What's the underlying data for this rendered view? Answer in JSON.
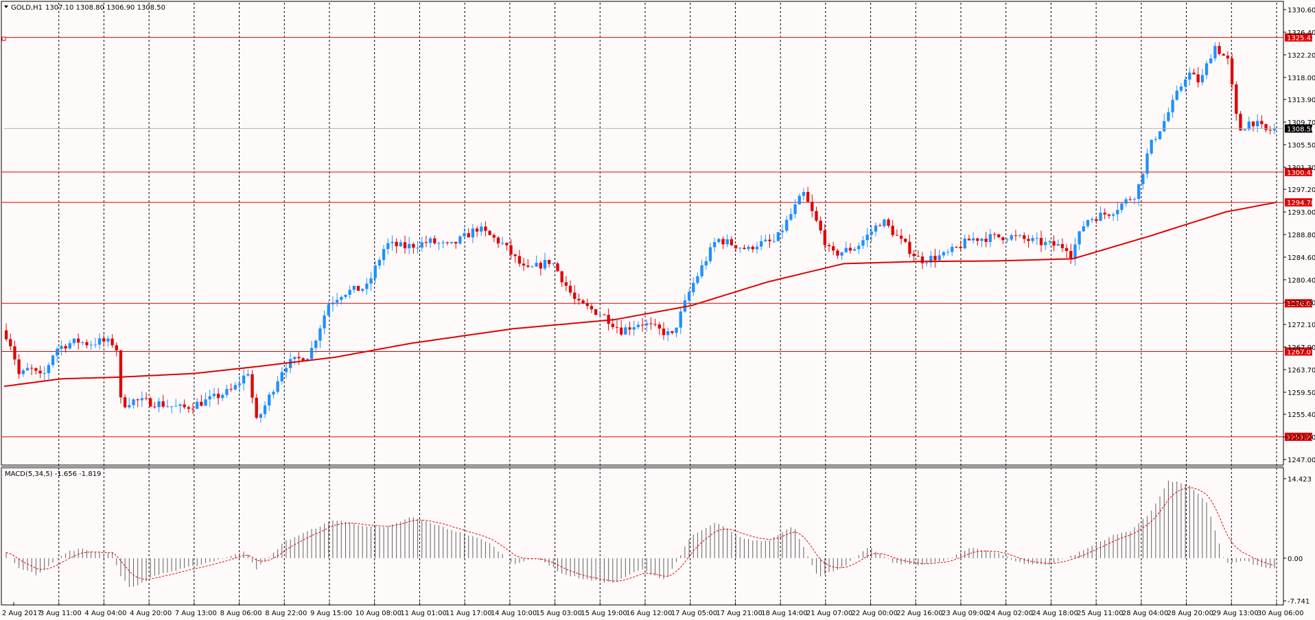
{
  "chart_data": {
    "type": "candlestick",
    "symbol_header": "GOLD,H1",
    "ohlc_header": "1307.10 1308.80 1306.90 1308.50",
    "current_price": "1308.50",
    "price_ticks": [
      "1330.60",
      "1326.40",
      "1322.20",
      "1318.00",
      "1313.90",
      "1309.70",
      "1305.50",
      "1301.30",
      "1297.20",
      "1293.00",
      "1288.80",
      "1284.60",
      "1280.40",
      "1276.20",
      "1272.10",
      "1267.90",
      "1263.70",
      "1259.50",
      "1255.40",
      "1251.20",
      "1247.00"
    ],
    "price_range": [
      1247.0,
      1330.6
    ],
    "moving_average": {
      "color": "#e00000",
      "x": [
        0,
        0.045,
        0.09,
        0.15,
        0.2,
        0.26,
        0.32,
        0.4,
        0.48,
        0.54,
        0.6,
        0.66,
        0.72,
        0.78,
        0.84,
        0.9,
        0.96,
        1.0
      ],
      "values": [
        1260.6,
        1262.0,
        1262.3,
        1263.0,
        1264.3,
        1266.0,
        1268.6,
        1271.3,
        1273.0,
        1275.6,
        1280.0,
        1283.4,
        1283.8,
        1283.9,
        1284.3,
        1288.5,
        1293.0,
        1294.8
      ]
    },
    "horizontal_levels": [
      {
        "label": "1325.43",
        "value": 1325.43
      },
      {
        "label": "1300.42",
        "value": 1300.42
      },
      {
        "label": "1294.78",
        "value": 1294.78
      },
      {
        "label": "1276.03",
        "value": 1276.03
      },
      {
        "label": "1267.07",
        "value": 1267.07
      },
      {
        "label": "1251.22",
        "value": 1251.22
      }
    ],
    "price_anchors": {
      "x": [
        0.0,
        0.006,
        0.012,
        0.02,
        0.03,
        0.04,
        0.05,
        0.058,
        0.066,
        0.076,
        0.088,
        0.092,
        0.1,
        0.12,
        0.14,
        0.16,
        0.18,
        0.194,
        0.196,
        0.205,
        0.22,
        0.24,
        0.255,
        0.266,
        0.285,
        0.3,
        0.315,
        0.335,
        0.35,
        0.372,
        0.392,
        0.41,
        0.43,
        0.45,
        0.47,
        0.485,
        0.5,
        0.525,
        0.54,
        0.56,
        0.585,
        0.59,
        0.606,
        0.628,
        0.65,
        0.67,
        0.69,
        0.705,
        0.72,
        0.74,
        0.76,
        0.79,
        0.82,
        0.835,
        0.831,
        0.85,
        0.87,
        0.89,
        0.9,
        0.912,
        0.93,
        0.94,
        0.951,
        0.962,
        0.97,
        0.98,
        0.992,
        1.0
      ],
      "values": [
        1271.0,
        1268.0,
        1262.5,
        1264.0,
        1262.0,
        1267.5,
        1268.5,
        1269.0,
        1268.5,
        1269.0,
        1268.5,
        1257.0,
        1258.0,
        1257.5,
        1256.5,
        1258.0,
        1260.0,
        1264.0,
        1253.0,
        1257.0,
        1264.5,
        1266.5,
        1276.0,
        1278.0,
        1279.0,
        1287.0,
        1286.5,
        1287.5,
        1286.5,
        1290.0,
        1287.0,
        1282.0,
        1284.0,
        1276.0,
        1274.0,
        1271.0,
        1272.5,
        1270.0,
        1279.0,
        1288.0,
        1286.0,
        1287.0,
        1287.5,
        1296.5,
        1285.0,
        1286.5,
        1291.5,
        1287.5,
        1284.0,
        1285.0,
        1288.0,
        1288.5,
        1287.0,
        1286.5,
        1281.0,
        1291.5,
        1293.0,
        1296.5,
        1305.0,
        1310.0,
        1319.0,
        1317.0,
        1324.0,
        1321.0,
        1308.0,
        1310.0,
        1308.0,
        1308.5
      ]
    },
    "macd": {
      "label": "MACD(5,34,5) -1.656 -1.819",
      "ticks": [
        "14.423",
        "0.00",
        "-7.741"
      ],
      "range": [
        -7.741,
        14.423
      ],
      "bar_color": "#606060",
      "signal_color": "#e00000",
      "x": [
        0,
        0.01,
        0.025,
        0.04,
        0.05,
        0.06,
        0.075,
        0.085,
        0.092,
        0.1,
        0.12,
        0.14,
        0.16,
        0.18,
        0.19,
        0.198,
        0.21,
        0.22,
        0.24,
        0.26,
        0.28,
        0.3,
        0.32,
        0.34,
        0.36,
        0.38,
        0.4,
        0.42,
        0.44,
        0.46,
        0.48,
        0.5,
        0.52,
        0.54,
        0.56,
        0.58,
        0.6,
        0.62,
        0.64,
        0.66,
        0.68,
        0.7,
        0.72,
        0.74,
        0.76,
        0.78,
        0.8,
        0.82,
        0.84,
        0.87,
        0.885,
        0.9,
        0.915,
        0.93,
        0.945,
        0.96,
        0.975,
        0.99,
        1.0
      ],
      "values": [
        1.5,
        -1.5,
        -3.0,
        -0.5,
        1.2,
        1.7,
        1.0,
        1.0,
        -3.5,
        -5.5,
        -3.0,
        -2.0,
        -0.8,
        0.5,
        1.5,
        -2.0,
        0.5,
        3.0,
        5.0,
        7.0,
        6.0,
        5.5,
        7.5,
        6.0,
        4.5,
        3.0,
        -1.0,
        0.0,
        -3.0,
        -4.0,
        -4.5,
        -2.0,
        -4.0,
        4.0,
        6.5,
        3.5,
        3.0,
        6.0,
        -3.5,
        -1.5,
        2.0,
        -1.0,
        -1.2,
        -0.5,
        2.0,
        1.0,
        -1.0,
        -1.2,
        0.5,
        4.0,
        5.0,
        8.0,
        14.0,
        13.5,
        10.0,
        -1.0,
        -0.5,
        -1.8,
        -1.8
      ]
    },
    "time_labels": [
      "2 Aug 2017",
      "3 Aug 11:00",
      "4 Aug 04:00",
      "4 Aug 20:00",
      "7 Aug 13:00",
      "8 Aug 06:00",
      "8 Aug 22:00",
      "9 Aug 15:00",
      "10 Aug 08:00",
      "11 Aug 01:00",
      "11 Aug 17:00",
      "14 Aug 10:00",
      "15 Aug 03:00",
      "15 Aug 19:00",
      "16 Aug 12:00",
      "17 Aug 05:00",
      "17 Aug 21:00",
      "18 Aug 14:00",
      "21 Aug 07:00",
      "22 Aug 00:00",
      "22 Aug 16:00",
      "23 Aug 09:00",
      "24 Aug 02:00",
      "24 Aug 18:00",
      "25 Aug 11:00",
      "28 Aug 04:00",
      "28 Aug 20:00",
      "29 Aug 13:00",
      "30 Aug 06:00"
    ],
    "colors": {
      "background": "#fffafa",
      "up_candle": "#1e90ff",
      "down_candle": "#e00000",
      "level_line": "#e00000",
      "grid": "#000000"
    }
  }
}
